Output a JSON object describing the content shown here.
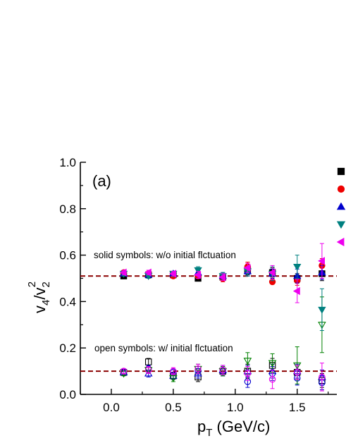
{
  "chart_data": {
    "type": "scatter",
    "panel_label": "(a)",
    "xlabel": {
      "main": "p",
      "sub": "T",
      "rest": " (GeV/c)"
    },
    "ylabel": {
      "v": "v",
      "sub1": "4",
      "slash": "/v",
      "sub2": "2",
      "sup": "2"
    },
    "xlim": [
      -0.25,
      1.82
    ],
    "ylim": [
      0.0,
      1.0
    ],
    "xticks": [
      0.0,
      0.5,
      1.0,
      1.5
    ],
    "xtick_labels": [
      "0.0",
      "0.5",
      "1.0",
      "1.5"
    ],
    "yticks": [
      0.0,
      0.2,
      0.4,
      0.6,
      0.8,
      1.0
    ],
    "ytick_labels": [
      "0.0",
      "0.2",
      "0.4",
      "0.6",
      "0.8",
      "1.0"
    ],
    "grid": false,
    "legend": {
      "placement": "top-right",
      "entries": [
        {
          "marker": "square",
          "color": "#000000"
        },
        {
          "marker": "circle",
          "color": "#ee0000"
        },
        {
          "marker": "triangle-up",
          "color": "#0000cc"
        },
        {
          "marker": "triangle-down",
          "color": "#008080"
        },
        {
          "marker": "triangle-left",
          "color": "#ee00ee"
        }
      ]
    },
    "annotations": [
      {
        "text": "solid symbols: w/o initial flctuation",
        "x": -0.2,
        "y": 0.575
      },
      {
        "text": "open symbols: w/  initial flctuation",
        "x": -0.2,
        "y": 0.19
      }
    ],
    "reference_lines": [
      {
        "y": 0.51,
        "style": "dashed",
        "color": "#8b0000"
      },
      {
        "y": 0.1,
        "style": "dashed",
        "color": "#8b0000"
      }
    ],
    "series": [
      {
        "marker": "square",
        "filled": true,
        "color": "#000000",
        "x": [
          0.1,
          0.3,
          0.5,
          0.7,
          0.9,
          1.1,
          1.3,
          1.5,
          1.7
        ],
        "y": [
          0.51,
          0.515,
          0.515,
          0.5,
          0.505,
          0.535,
          0.525,
          0.5,
          0.52
        ],
        "err": [
          0.01,
          0.01,
          0.01,
          0.01,
          0.015,
          0.02,
          0.02,
          0.02,
          0.03
        ]
      },
      {
        "marker": "circle",
        "filled": true,
        "color": "#ee0000",
        "x": [
          0.1,
          0.3,
          0.5,
          0.7,
          0.9,
          1.1,
          1.3,
          1.5,
          1.7
        ],
        "y": [
          0.525,
          0.52,
          0.51,
          0.51,
          0.5,
          0.55,
          0.485,
          0.49,
          0.555
        ],
        "err": [
          0.01,
          0.01,
          0.01,
          0.01,
          0.015,
          0.02,
          0.01,
          0.02,
          0.03
        ]
      },
      {
        "marker": "triangle-up",
        "filled": true,
        "color": "#0000cc",
        "x": [
          0.1,
          0.3,
          0.5,
          0.7,
          0.9,
          1.1,
          1.3,
          1.5,
          1.7
        ],
        "y": [
          0.52,
          0.515,
          0.52,
          0.525,
          0.51,
          0.53,
          0.52,
          0.51,
          0.525
        ],
        "err": [
          0.01,
          0.01,
          0.01,
          0.01,
          0.015,
          0.02,
          0.02,
          0.03,
          0.03
        ]
      },
      {
        "marker": "triangle-down",
        "filled": true,
        "color": "#008080",
        "x": [
          0.1,
          0.3,
          0.5,
          0.7,
          0.9,
          1.1,
          1.3,
          1.5,
          1.7
        ],
        "y": [
          0.52,
          0.51,
          0.52,
          0.535,
          0.51,
          0.53,
          0.52,
          0.55,
          0.365
        ],
        "err": [
          0.01,
          0.01,
          0.01,
          0.015,
          0.015,
          0.02,
          0.03,
          0.05,
          0.09
        ]
      },
      {
        "marker": "triangle-left",
        "filled": true,
        "color": "#ee00ee",
        "x": [
          0.1,
          0.3,
          0.5,
          0.7,
          0.9,
          1.1,
          1.3,
          1.5,
          1.7
        ],
        "y": [
          0.525,
          0.525,
          0.52,
          0.515,
          0.505,
          0.545,
          0.525,
          0.445,
          0.575
        ],
        "err": [
          0.01,
          0.01,
          0.01,
          0.015,
          0.015,
          0.02,
          0.03,
          0.05,
          0.075
        ]
      },
      {
        "marker": "square",
        "filled": false,
        "color": "#000000",
        "x": [
          0.1,
          0.3,
          0.5,
          0.7,
          0.9,
          1.1,
          1.3,
          1.5,
          1.7
        ],
        "y": [
          0.095,
          0.14,
          0.08,
          0.075,
          0.1,
          0.1,
          0.125,
          0.095,
          0.06
        ],
        "err": [
          0.01,
          0.015,
          0.015,
          0.02,
          0.02,
          0.03,
          0.03,
          0.03,
          0.03
        ]
      },
      {
        "marker": "circle",
        "filled": false,
        "color": "#0000cc",
        "x": [
          0.1,
          0.3,
          0.5,
          0.7,
          0.9,
          1.1,
          1.3,
          1.5,
          1.7
        ],
        "y": [
          0.1,
          0.11,
          0.095,
          0.1,
          0.1,
          0.055,
          0.09,
          0.07,
          0.05
        ],
        "err": [
          0.01,
          0.015,
          0.015,
          0.02,
          0.02,
          0.025,
          0.03,
          0.03,
          0.03
        ]
      },
      {
        "marker": "triangle-up",
        "filled": false,
        "color": "#0000cc",
        "x": [
          0.1,
          0.3,
          0.5,
          0.7,
          0.9,
          1.1,
          1.3,
          1.5,
          1.7
        ],
        "y": [
          0.095,
          0.09,
          0.08,
          0.09,
          0.105,
          0.1,
          0.1,
          0.1,
          0.075
        ],
        "err": [
          0.01,
          0.015,
          0.015,
          0.02,
          0.02,
          0.025,
          0.03,
          0.03,
          0.03
        ]
      },
      {
        "marker": "triangle-down",
        "filled": false,
        "color": "#008000",
        "x": [
          0.1,
          0.3,
          0.5,
          0.7,
          0.9,
          1.1,
          1.3,
          1.5,
          1.7
        ],
        "y": [
          0.09,
          0.105,
          0.07,
          0.11,
          0.1,
          0.145,
          0.135,
          0.125,
          0.3
        ],
        "err": [
          0.01,
          0.015,
          0.015,
          0.02,
          0.02,
          0.035,
          0.04,
          0.08,
          0.12
        ]
      },
      {
        "marker": "circle",
        "filled": false,
        "color": "#ee00ee",
        "x": [
          0.1,
          0.3,
          0.5,
          0.7,
          0.9,
          1.1,
          1.3,
          1.5,
          1.7
        ],
        "y": [
          0.1,
          0.105,
          0.1,
          0.11,
          0.105,
          0.09,
          0.065,
          0.095,
          0.075
        ],
        "err": [
          0.01,
          0.015,
          0.015,
          0.02,
          0.02,
          0.03,
          0.04,
          0.03,
          0.06
        ]
      }
    ]
  }
}
